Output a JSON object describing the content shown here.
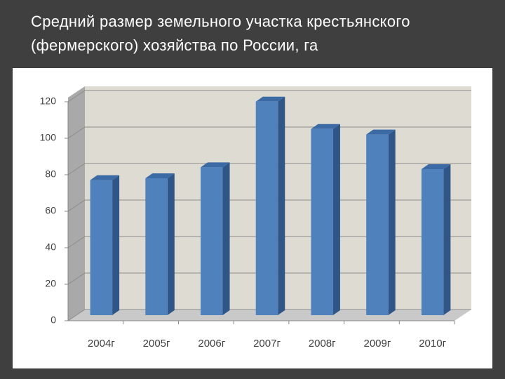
{
  "title": "Средний размер земельного участка крестьянского (фермерского) хозяйства по России, га",
  "chart_data": {
    "type": "bar3d",
    "categories": [
      "2004г",
      "2005г",
      "2006г",
      "2007г",
      "2008г",
      "2009г",
      "2010г"
    ],
    "values": [
      74,
      75,
      81,
      117,
      102,
      99,
      80
    ],
    "color": "#4f81bd",
    "ylim": [
      0,
      120
    ],
    "yticks": [
      0,
      20,
      40,
      60,
      80,
      100,
      120
    ],
    "grid": true
  }
}
